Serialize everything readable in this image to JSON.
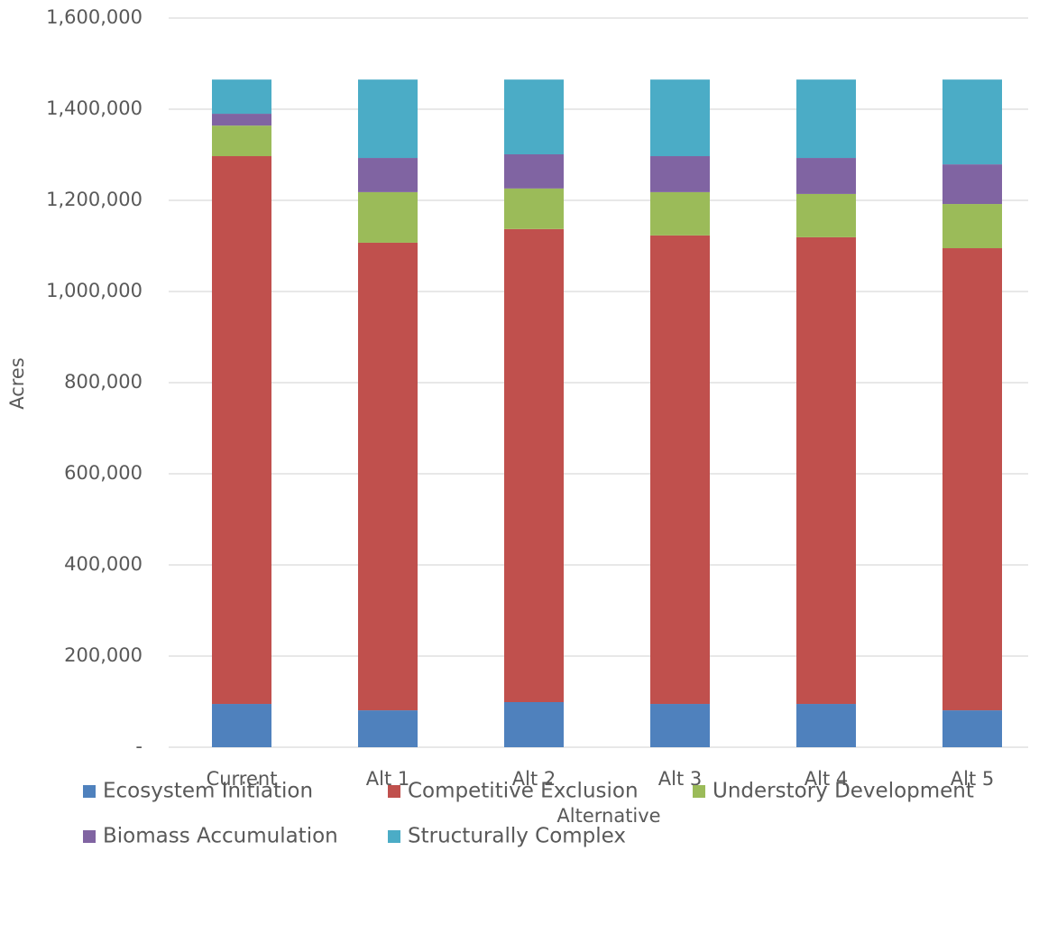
{
  "chart_data": {
    "type": "stacked_bar",
    "x_label": "Alternative",
    "y_label": "Acres",
    "categories": [
      "Current",
      "Alt 1",
      "Alt 2",
      "Alt 3",
      "Alt 4",
      "Alt 5"
    ],
    "series": [
      {
        "name": "Ecosystem Initiation",
        "color": "#4f81bd",
        "values": [
          95000,
          81000,
          99000,
          95000,
          95000,
          81000
        ]
      },
      {
        "name": "Competitive Exclusion",
        "color": "#c0504d",
        "values": [
          1202000,
          1026000,
          1038000,
          1028000,
          1024000,
          1014000
        ]
      },
      {
        "name": "Understory Development",
        "color": "#9bbb59",
        "values": [
          67000,
          111000,
          89000,
          95000,
          95000,
          97000
        ]
      },
      {
        "name": "Biomass Accumulation",
        "color": "#8064a2",
        "values": [
          26000,
          75000,
          75000,
          79000,
          79000,
          87000
        ]
      },
      {
        "name": "Structurally Complex",
        "color": "#4bacc6",
        "values": [
          75000,
          172000,
          164000,
          168000,
          172000,
          186000
        ]
      }
    ],
    "ylim": [
      0,
      1600000
    ],
    "yticks": [
      {
        "value": 0,
        "label": "-"
      },
      {
        "value": 200000,
        "label": "200,000"
      },
      {
        "value": 400000,
        "label": "400,000"
      },
      {
        "value": 600000,
        "label": "600,000"
      },
      {
        "value": 800000,
        "label": "800,000"
      },
      {
        "value": 1000000,
        "label": "1,000,000"
      },
      {
        "value": 1200000,
        "label": "1,200,000"
      },
      {
        "value": 1400000,
        "label": "1,400,000"
      },
      {
        "value": 1600000,
        "label": "1,600,000"
      }
    ],
    "grid": true,
    "legend": "bottom"
  }
}
